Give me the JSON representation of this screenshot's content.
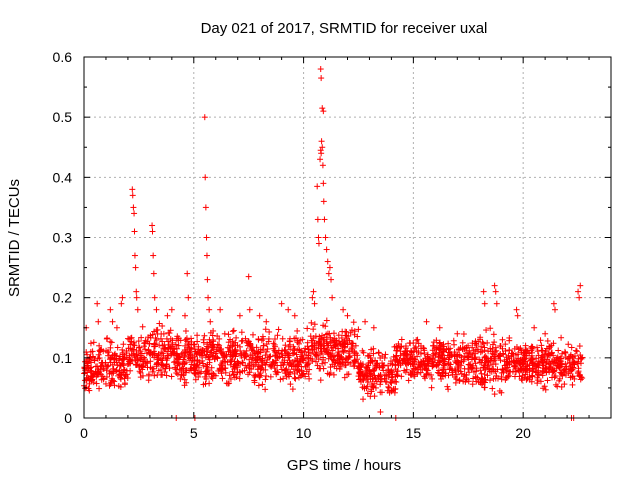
{
  "chart_data": {
    "type": "scatter",
    "title": "Day 021 of 2017, SRMTID for receiver uxal",
    "xlabel": "GPS time / hours",
    "ylabel": "SRMTID / TECUs",
    "xlim": [
      0,
      24
    ],
    "ylim": [
      0,
      0.6
    ],
    "xticks": [
      0,
      5,
      10,
      15,
      20
    ],
    "yticks": [
      0,
      0.1,
      0.2,
      0.3,
      0.4,
      0.5,
      0.6
    ],
    "xtick_labels": [
      "0",
      "5",
      "10",
      "15",
      "20"
    ],
    "ytick_labels": [
      "0",
      "0.1",
      "0.2",
      "0.3",
      "0.4",
      "0.5",
      "0.6"
    ],
    "grid": true,
    "marker": "+",
    "color": "#ff0000",
    "background_ranges": [
      {
        "x0": 0.0,
        "x1": 2.0,
        "lo": 0.03,
        "hi": 0.14
      },
      {
        "x0": 2.0,
        "x1": 5.0,
        "lo": 0.04,
        "hi": 0.17
      },
      {
        "x0": 5.0,
        "x1": 10.3,
        "lo": 0.04,
        "hi": 0.16
      },
      {
        "x0": 10.3,
        "x1": 12.5,
        "lo": 0.05,
        "hi": 0.17
      },
      {
        "x0": 12.5,
        "x1": 14.2,
        "lo": 0.02,
        "hi": 0.13
      },
      {
        "x0": 14.2,
        "x1": 17.8,
        "lo": 0.04,
        "hi": 0.15
      },
      {
        "x0": 17.8,
        "x1": 19.2,
        "lo": 0.02,
        "hi": 0.16
      },
      {
        "x0": 19.2,
        "x1": 22.7,
        "lo": 0.04,
        "hi": 0.14
      }
    ],
    "points": [
      [
        2.2,
        0.38
      ],
      [
        2.22,
        0.37
      ],
      [
        2.25,
        0.35
      ],
      [
        2.28,
        0.34
      ],
      [
        2.3,
        0.31
      ],
      [
        2.32,
        0.27
      ],
      [
        2.35,
        0.25
      ],
      [
        2.38,
        0.21
      ],
      [
        2.4,
        0.2
      ],
      [
        2.45,
        0.18
      ],
      [
        3.1,
        0.32
      ],
      [
        3.12,
        0.31
      ],
      [
        3.15,
        0.27
      ],
      [
        3.18,
        0.24
      ],
      [
        3.22,
        0.2
      ],
      [
        3.3,
        0.18
      ],
      [
        4.7,
        0.24
      ],
      [
        4.75,
        0.2
      ],
      [
        4.6,
        0.17
      ],
      [
        4.2,
        0.0
      ],
      [
        5.05,
        0.0
      ],
      [
        5.5,
        0.5
      ],
      [
        5.52,
        0.4
      ],
      [
        5.55,
        0.35
      ],
      [
        5.58,
        0.3
      ],
      [
        5.6,
        0.27
      ],
      [
        5.62,
        0.23
      ],
      [
        5.65,
        0.2
      ],
      [
        5.7,
        0.18
      ],
      [
        5.75,
        0.16
      ],
      [
        7.5,
        0.235
      ],
      [
        7.55,
        0.18
      ],
      [
        10.4,
        0.2
      ],
      [
        10.45,
        0.21
      ],
      [
        10.5,
        0.19
      ],
      [
        10.62,
        0.385
      ],
      [
        10.65,
        0.33
      ],
      [
        10.68,
        0.3
      ],
      [
        10.7,
        0.29
      ],
      [
        10.75,
        0.43
      ],
      [
        10.78,
        0.445
      ],
      [
        10.8,
        0.44
      ],
      [
        10.82,
        0.46
      ],
      [
        10.85,
        0.45
      ],
      [
        10.88,
        0.42
      ],
      [
        10.9,
        0.39
      ],
      [
        10.92,
        0.36
      ],
      [
        10.95,
        0.33
      ],
      [
        10.78,
        0.58
      ],
      [
        10.8,
        0.565
      ],
      [
        10.85,
        0.515
      ],
      [
        10.9,
        0.51
      ],
      [
        11.0,
        0.3
      ],
      [
        11.05,
        0.28
      ],
      [
        11.1,
        0.26
      ],
      [
        11.15,
        0.24
      ],
      [
        11.2,
        0.25
      ],
      [
        11.25,
        0.23
      ],
      [
        11.3,
        0.2
      ],
      [
        11.8,
        0.18
      ],
      [
        12.0,
        0.17
      ],
      [
        13.5,
        0.01
      ],
      [
        14.2,
        0.0
      ],
      [
        18.2,
        0.21
      ],
      [
        18.25,
        0.19
      ],
      [
        18.7,
        0.22
      ],
      [
        18.75,
        0.21
      ],
      [
        18.8,
        0.19
      ],
      [
        19.7,
        0.18
      ],
      [
        19.75,
        0.17
      ],
      [
        21.4,
        0.19
      ],
      [
        21.45,
        0.18
      ],
      [
        22.5,
        0.21
      ],
      [
        22.55,
        0.2
      ],
      [
        22.6,
        0.22
      ],
      [
        22.2,
        0.0
      ],
      [
        22.3,
        0.0
      ],
      [
        0.1,
        0.15
      ],
      [
        0.6,
        0.19
      ],
      [
        0.65,
        0.16
      ],
      [
        1.2,
        0.18
      ],
      [
        1.3,
        0.16
      ],
      [
        1.5,
        0.15
      ],
      [
        1.7,
        0.19
      ],
      [
        1.75,
        0.2
      ],
      [
        3.8,
        0.17
      ],
      [
        4.0,
        0.18
      ],
      [
        6.2,
        0.18
      ],
      [
        7.1,
        0.17
      ],
      [
        8.0,
        0.17
      ],
      [
        8.3,
        0.16
      ],
      [
        9.0,
        0.19
      ],
      [
        9.3,
        0.18
      ],
      [
        9.6,
        0.17
      ],
      [
        12.8,
        0.16
      ],
      [
        13.2,
        0.15
      ],
      [
        15.6,
        0.16
      ],
      [
        16.2,
        0.15
      ],
      [
        17.0,
        0.14
      ],
      [
        20.5,
        0.15
      ],
      [
        21.0,
        0.14
      ]
    ]
  }
}
